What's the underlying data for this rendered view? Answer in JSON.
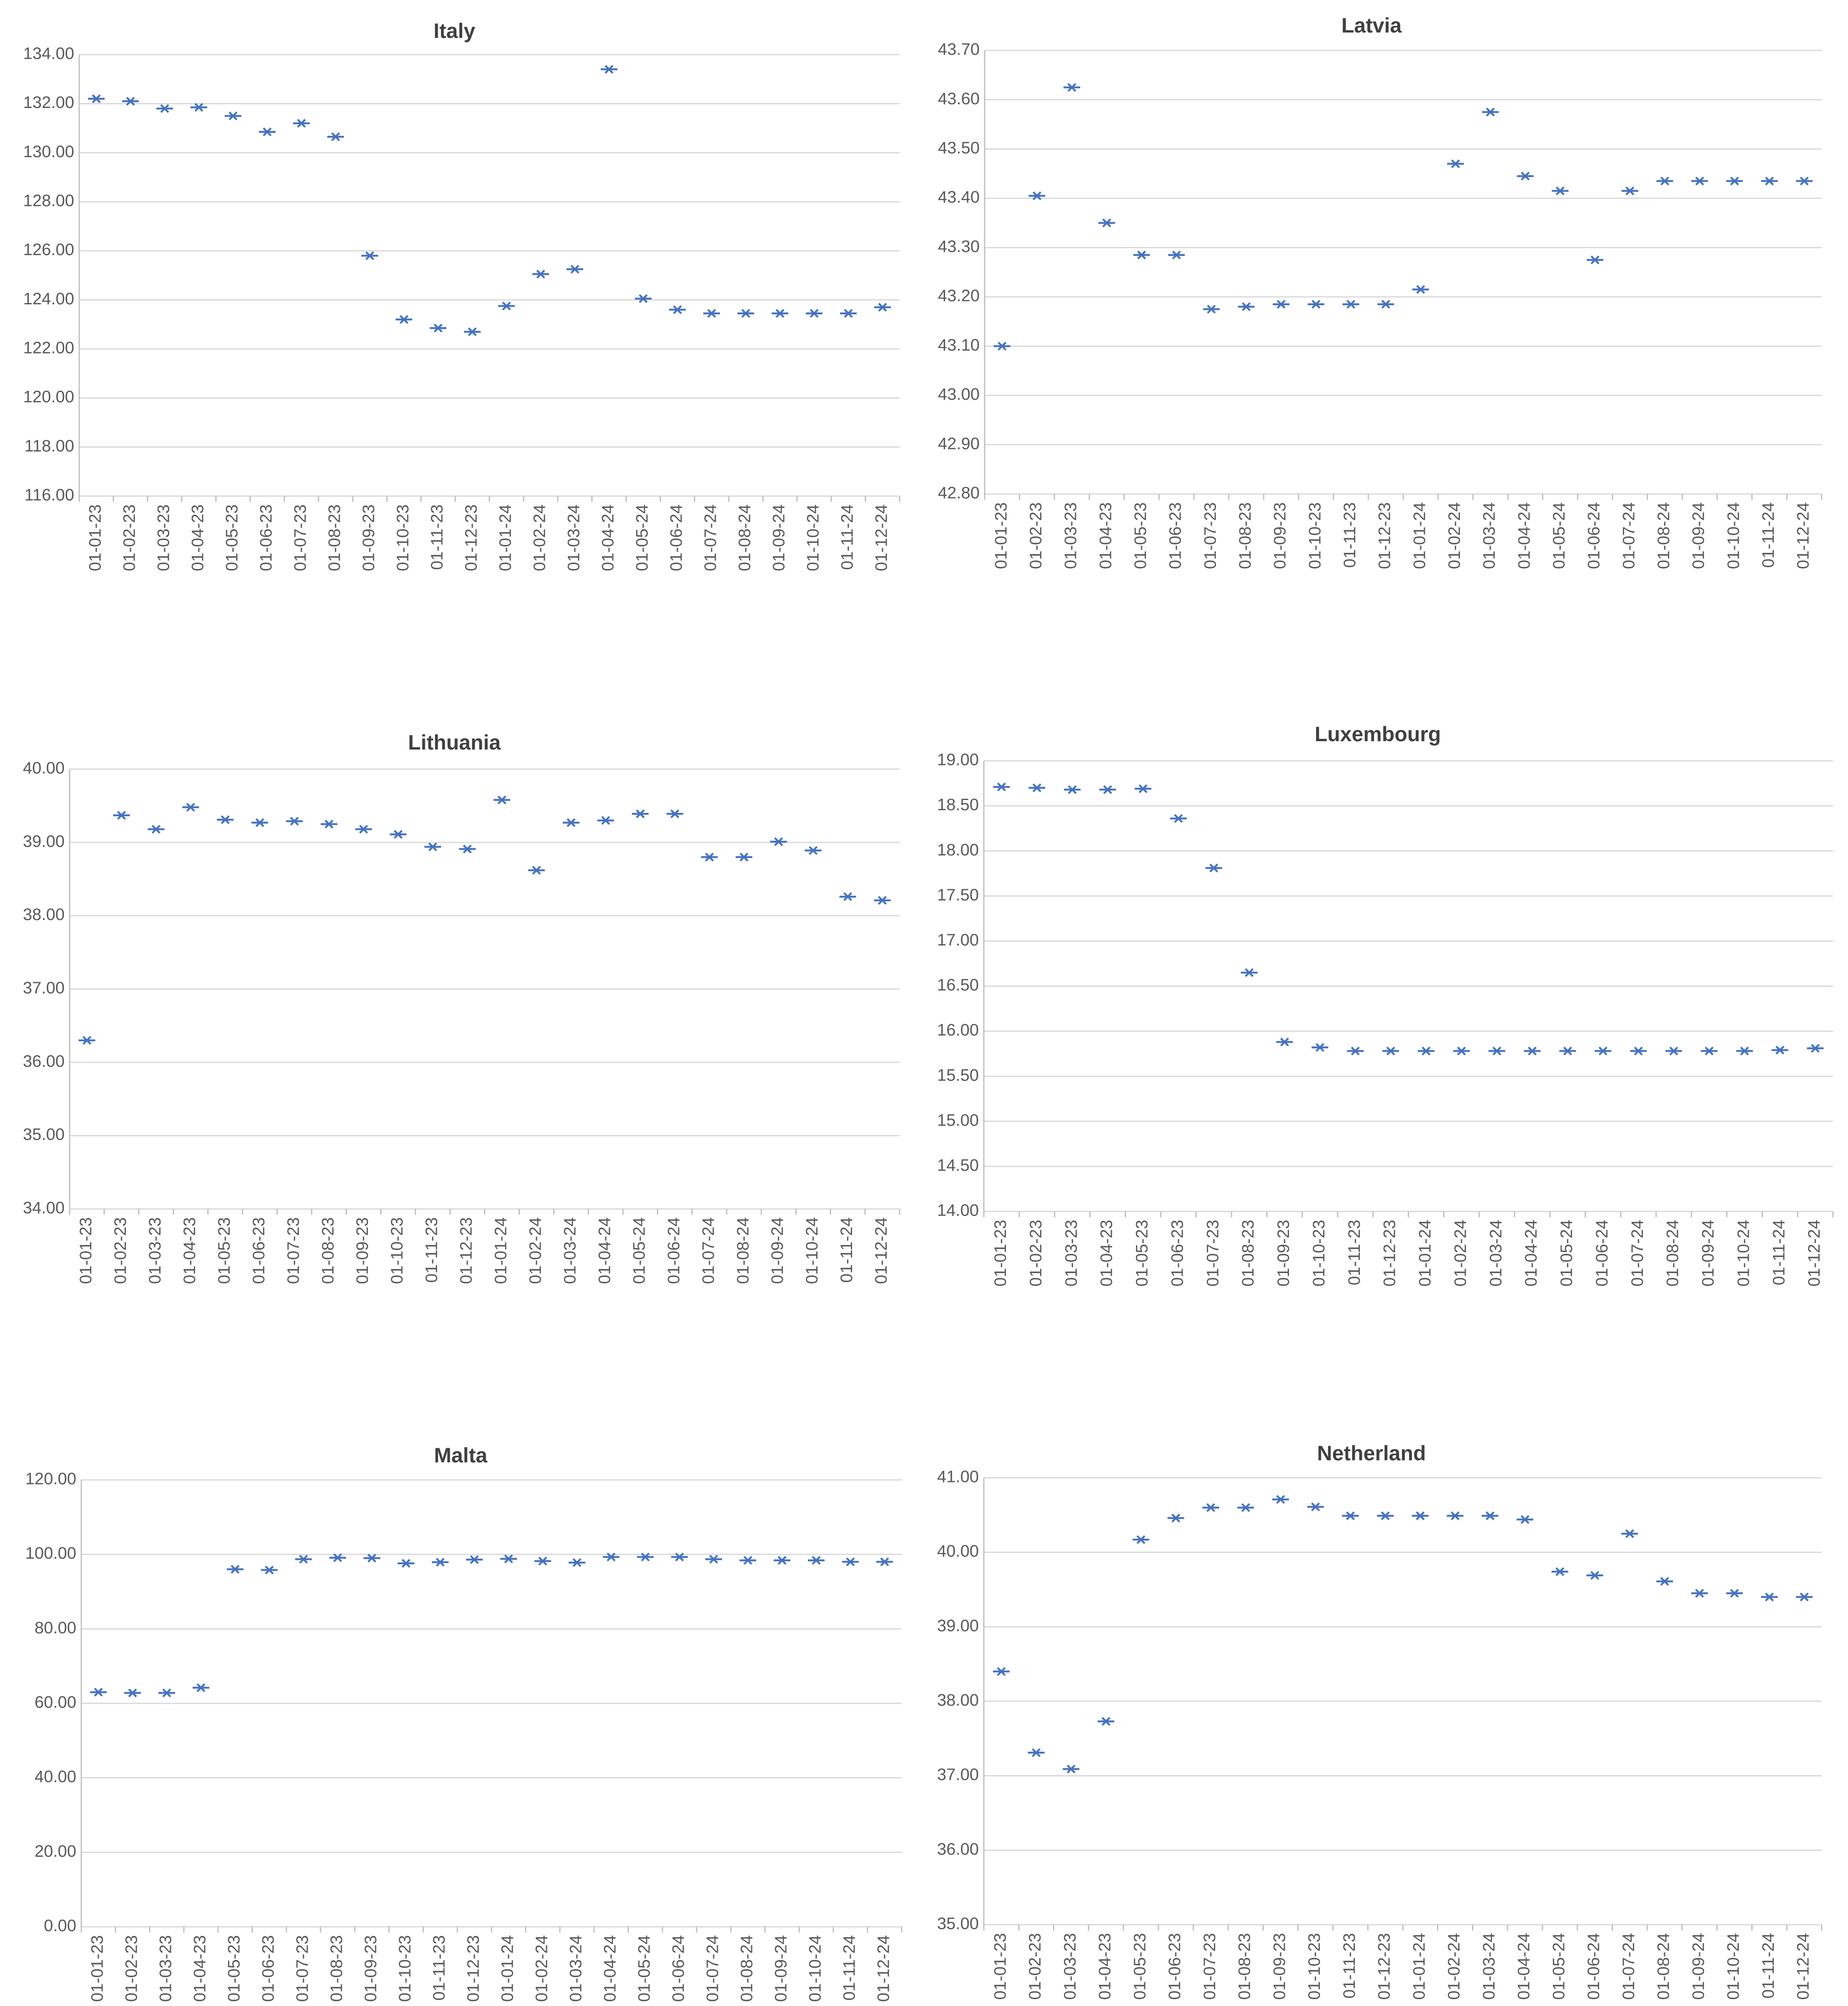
{
  "colors": {
    "marker": "#4472c4",
    "grid": "#d9d9d9",
    "text": "#595959",
    "title": "#404040"
  },
  "chart_data": [
    {
      "type": "scatter",
      "title": "Italy",
      "marker": "x",
      "grid": true,
      "legend": "none",
      "categories": [
        "01-01-23",
        "01-02-23",
        "01-03-23",
        "01-04-23",
        "01-05-23",
        "01-06-23",
        "01-07-23",
        "01-08-23",
        "01-09-23",
        "01-10-23",
        "01-11-23",
        "01-12-23",
        "01-01-24",
        "01-02-24",
        "01-03-24",
        "01-04-24",
        "01-05-24",
        "01-06-24",
        "01-07-24",
        "01-08-24",
        "01-09-24",
        "01-10-24",
        "01-11-24",
        "01-12-24"
      ],
      "values": [
        132.2,
        132.1,
        131.8,
        131.85,
        131.5,
        130.85,
        131.2,
        130.65,
        125.8,
        123.2,
        122.85,
        122.7,
        123.75,
        125.05,
        125.25,
        133.4,
        124.05,
        123.6,
        123.45,
        123.45,
        123.45,
        123.45,
        123.45,
        123.7
      ],
      "ylim": [
        116,
        134
      ],
      "yticks": [
        "116.00",
        "118.00",
        "120.00",
        "122.00",
        "124.00",
        "126.00",
        "128.00",
        "130.00",
        "132.00",
        "134.00"
      ]
    },
    {
      "type": "scatter",
      "title": "Latvia",
      "marker": "x",
      "grid": true,
      "legend": "none",
      "categories": [
        "01-01-23",
        "01-02-23",
        "01-03-23",
        "01-04-23",
        "01-05-23",
        "01-06-23",
        "01-07-23",
        "01-08-23",
        "01-09-23",
        "01-10-23",
        "01-11-23",
        "01-12-23",
        "01-01-24",
        "01-02-24",
        "01-03-24",
        "01-04-24",
        "01-05-24",
        "01-06-24",
        "01-07-24",
        "01-08-24",
        "01-09-24",
        "01-10-24",
        "01-11-24",
        "01-12-24"
      ],
      "values": [
        43.1,
        43.405,
        43.625,
        43.35,
        43.285,
        43.285,
        43.175,
        43.18,
        43.185,
        43.185,
        43.185,
        43.185,
        43.215,
        43.47,
        43.575,
        43.445,
        43.415,
        43.275,
        43.415,
        43.435,
        43.435,
        43.435,
        43.435,
        43.435
      ],
      "ylim": [
        42.8,
        43.7
      ],
      "yticks": [
        "42.80",
        "42.90",
        "43.00",
        "43.10",
        "43.20",
        "43.30",
        "43.40",
        "43.50",
        "43.60",
        "43.70"
      ]
    },
    {
      "type": "scatter",
      "title": "Lithuania",
      "marker": "x",
      "grid": true,
      "legend": "none",
      "categories": [
        "01-01-23",
        "01-02-23",
        "01-03-23",
        "01-04-23",
        "01-05-23",
        "01-06-23",
        "01-07-23",
        "01-08-23",
        "01-09-23",
        "01-10-23",
        "01-11-23",
        "01-12-23",
        "01-01-24",
        "01-02-24",
        "01-03-24",
        "01-04-24",
        "01-05-24",
        "01-06-24",
        "01-07-24",
        "01-08-24",
        "01-09-24",
        "01-10-24",
        "01-11-24",
        "01-12-24"
      ],
      "values": [
        36.3,
        39.37,
        39.18,
        39.48,
        39.31,
        39.27,
        39.29,
        39.25,
        39.18,
        39.11,
        38.94,
        38.91,
        39.58,
        38.62,
        39.27,
        39.3,
        39.39,
        39.39,
        38.8,
        38.8,
        39.01,
        38.89,
        38.26,
        38.21
      ],
      "ylim": [
        34,
        40
      ],
      "yticks": [
        "34.00",
        "35.00",
        "36.00",
        "37.00",
        "38.00",
        "39.00",
        "40.00"
      ]
    },
    {
      "type": "scatter",
      "title": "Luxembourg",
      "marker": "x",
      "grid": true,
      "legend": "none",
      "categories": [
        "01-01-23",
        "01-02-23",
        "01-03-23",
        "01-04-23",
        "01-05-23",
        "01-06-23",
        "01-07-23",
        "01-08-23",
        "01-09-23",
        "01-10-23",
        "01-11-23",
        "01-12-23",
        "01-01-24",
        "01-02-24",
        "01-03-24",
        "01-04-24",
        "01-05-24",
        "01-06-24",
        "01-07-24",
        "01-08-24",
        "01-09-24",
        "01-10-24",
        "01-11-24",
        "01-12-24"
      ],
      "values": [
        18.71,
        18.7,
        18.68,
        18.68,
        18.69,
        18.36,
        17.81,
        16.65,
        15.88,
        15.82,
        15.78,
        15.78,
        15.78,
        15.78,
        15.78,
        15.78,
        15.78,
        15.78,
        15.78,
        15.78,
        15.78,
        15.78,
        15.79,
        15.81
      ],
      "ylim": [
        14,
        19
      ],
      "yticks": [
        "14.00",
        "14.50",
        "15.00",
        "15.50",
        "16.00",
        "16.50",
        "17.00",
        "17.50",
        "18.00",
        "18.50",
        "19.00"
      ]
    },
    {
      "type": "scatter",
      "title": "Malta",
      "marker": "x",
      "grid": true,
      "legend": "none",
      "categories": [
        "01-01-23",
        "01-02-23",
        "01-03-23",
        "01-04-23",
        "01-05-23",
        "01-06-23",
        "01-07-23",
        "01-08-23",
        "01-09-23",
        "01-10-23",
        "01-11-23",
        "01-12-23",
        "01-01-24",
        "01-02-24",
        "01-03-24",
        "01-04-24",
        "01-05-24",
        "01-06-24",
        "01-07-24",
        "01-08-24",
        "01-09-24",
        "01-10-24",
        "01-11-24",
        "01-12-24"
      ],
      "values": [
        63.0,
        62.8,
        62.8,
        64.2,
        96.0,
        95.8,
        98.7,
        99.1,
        99.0,
        97.6,
        97.9,
        98.6,
        98.8,
        98.2,
        97.8,
        99.3,
        99.3,
        99.3,
        98.7,
        98.4,
        98.4,
        98.4,
        98.0,
        98.0
      ],
      "ylim": [
        0,
        120
      ],
      "yticks": [
        "0.00",
        "20.00",
        "40.00",
        "60.00",
        "80.00",
        "100.00",
        "120.00"
      ]
    },
    {
      "type": "scatter",
      "title": "Netherland",
      "marker": "x",
      "grid": true,
      "legend": "none",
      "categories": [
        "01-01-23",
        "01-02-23",
        "01-03-23",
        "01-04-23",
        "01-05-23",
        "01-06-23",
        "01-07-23",
        "01-08-23",
        "01-09-23",
        "01-10-23",
        "01-11-23",
        "01-12-23",
        "01-01-24",
        "01-02-24",
        "01-03-24",
        "01-04-24",
        "01-05-24",
        "01-06-24",
        "01-07-24",
        "01-08-24",
        "01-09-24",
        "01-10-24",
        "01-11-24",
        "01-12-24"
      ],
      "values": [
        38.4,
        37.31,
        37.09,
        37.73,
        40.17,
        40.46,
        40.6,
        40.6,
        40.71,
        40.61,
        40.49,
        40.49,
        40.49,
        40.49,
        40.49,
        40.44,
        39.74,
        39.69,
        40.25,
        39.61,
        39.45,
        39.45,
        39.4,
        39.4
      ],
      "ylim": [
        35,
        41
      ],
      "yticks": [
        "35.00",
        "36.00",
        "37.00",
        "38.00",
        "39.00",
        "40.00",
        "41.00"
      ]
    }
  ]
}
